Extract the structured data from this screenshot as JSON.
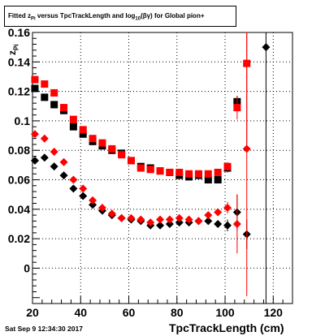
{
  "chart_data": {
    "type": "scatter",
    "title": "Fitted  z",
    "title_sub": "Pi",
    "title_rest": " versus TpcTrackLength and log",
    "title_sub2": "10",
    "title_end": "(βγ) for Global pion+",
    "ylabel": "z",
    "ylabel_sub": "Pi",
    "xlabel": "TpcTrackLength (cm)",
    "timestamp": "Sat Sep  9 12:34:30 2017",
    "xlim": [
      20,
      128
    ],
    "ylim": [
      -0.024,
      0.16
    ],
    "xticks": [
      20,
      40,
      60,
      80,
      100,
      120
    ],
    "yticks": [
      0,
      0.02,
      0.04,
      0.06,
      0.08,
      0.1,
      0.12,
      0.14,
      0.16
    ],
    "ytick_labels": [
      "0",
      "0.02",
      "0.04",
      "0.06",
      "0.08",
      "0.1",
      "0.12",
      "0.14",
      "0.16"
    ],
    "grid": true,
    "series": [
      {
        "marker": "square",
        "color": "#000000",
        "x": [
          21,
          25,
          29,
          33,
          37,
          41,
          45,
          49,
          53,
          57,
          61,
          65,
          69,
          73,
          77,
          81,
          85,
          89,
          93,
          97,
          101,
          105
        ],
        "y": [
          0.122,
          0.116,
          0.111,
          0.107,
          0.096,
          0.091,
          0.086,
          0.083,
          0.08,
          0.078,
          0.073,
          0.069,
          0.068,
          0.066,
          0.065,
          0.063,
          0.062,
          0.063,
          0.06,
          0.06,
          0.068,
          0.113
        ],
        "err": [
          0.002,
          0.002,
          0.002,
          0.002,
          0.002,
          0.002,
          0.002,
          0.002,
          0.002,
          0.002,
          0.002,
          0.002,
          0.002,
          0.002,
          0.002,
          0.002,
          0.002,
          0.002,
          0.002,
          0.002,
          0.003,
          0.004
        ]
      },
      {
        "marker": "square",
        "color": "#ff0000",
        "x": [
          21,
          25,
          29,
          33,
          37,
          41,
          45,
          49,
          53,
          57,
          61,
          65,
          69,
          73,
          77,
          81,
          85,
          89,
          93,
          97,
          101,
          105,
          109
        ],
        "y": [
          0.128,
          0.125,
          0.119,
          0.109,
          0.101,
          0.094,
          0.088,
          0.085,
          0.081,
          0.077,
          0.073,
          0.068,
          0.067,
          0.066,
          0.065,
          0.065,
          0.064,
          0.064,
          0.064,
          0.065,
          0.069,
          0.109,
          0.139
        ],
        "err": [
          0.002,
          0.002,
          0.002,
          0.002,
          0.002,
          0.002,
          0.002,
          0.002,
          0.002,
          0.002,
          0.002,
          0.002,
          0.002,
          0.002,
          0.002,
          0.002,
          0.002,
          0.002,
          0.002,
          0.002,
          0.003,
          0.008,
          0.06
        ]
      },
      {
        "marker": "diamond",
        "color": "#000000",
        "x": [
          21,
          25,
          29,
          33,
          37,
          41,
          45,
          49,
          53,
          57,
          61,
          65,
          69,
          73,
          77,
          81,
          85,
          89,
          93,
          97,
          101,
          105,
          109,
          117
        ],
        "y": [
          0.073,
          0.075,
          0.069,
          0.063,
          0.054,
          0.049,
          0.043,
          0.039,
          0.036,
          0.034,
          0.033,
          0.032,
          0.029,
          0.029,
          0.03,
          0.031,
          0.031,
          0.032,
          0.032,
          0.03,
          0.029,
          0.038,
          0.023,
          0.15
        ],
        "err": [
          0.002,
          0.002,
          0.002,
          0.002,
          0.002,
          0.002,
          0.002,
          0.002,
          0.002,
          0.002,
          0.002,
          0.002,
          0.002,
          0.002,
          0.002,
          0.002,
          0.002,
          0.002,
          0.002,
          0.002,
          0.004,
          0.012,
          0.01,
          0.2
        ]
      },
      {
        "marker": "diamond",
        "color": "#ff0000",
        "x": [
          21,
          25,
          29,
          33,
          37,
          41,
          45,
          49,
          53,
          57,
          61,
          65,
          69,
          73,
          77,
          81,
          85,
          89,
          93,
          97,
          101,
          105,
          109
        ],
        "y": [
          0.091,
          0.088,
          0.079,
          0.072,
          0.06,
          0.054,
          0.046,
          0.041,
          0.037,
          0.034,
          0.034,
          0.033,
          0.031,
          0.033,
          0.033,
          0.034,
          0.033,
          0.032,
          0.036,
          0.038,
          0.041,
          0.03,
          0.081
        ],
        "err": [
          0.002,
          0.002,
          0.002,
          0.002,
          0.002,
          0.002,
          0.002,
          0.002,
          0.002,
          0.002,
          0.002,
          0.002,
          0.002,
          0.002,
          0.002,
          0.002,
          0.002,
          0.002,
          0.002,
          0.002,
          0.004,
          0.02,
          0.1
        ]
      }
    ]
  }
}
